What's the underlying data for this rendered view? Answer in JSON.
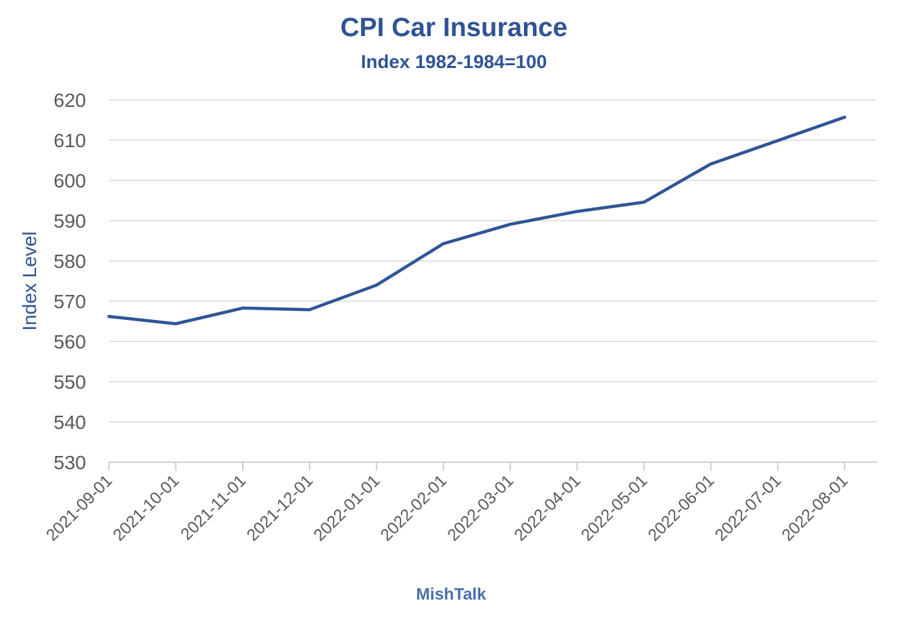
{
  "colors": {
    "title": "#2F5496",
    "line": "#2F5597",
    "grid": "#D9D9D9",
    "axis": "#BFBFBF",
    "tick_text": "#595959",
    "xlabel": "#4A6FAD"
  },
  "chart_data": {
    "type": "line",
    "title": "CPI Car Insurance",
    "subtitle": "Index 1982-1984=100",
    "ylabel": "Index Level",
    "xlabel": "MishTalk",
    "ylim": [
      530,
      620
    ],
    "ytick_step": 10,
    "yticks": [
      "530",
      "540",
      "550",
      "560",
      "570",
      "580",
      "590",
      "600",
      "610",
      "620"
    ],
    "grid": true,
    "legend": "none",
    "categories": [
      "2021-09-01",
      "2021-10-01",
      "2021-11-01",
      "2021-12-01",
      "2022-01-01",
      "2022-02-01",
      "2022-03-01",
      "2022-04-01",
      "2022-05-01",
      "2022-06-01",
      "2022-07-01",
      "2022-08-01"
    ],
    "series": [
      {
        "values": [
          566.2,
          564.4,
          568.3,
          567.9,
          574.0,
          584.3,
          589.1,
          592.3,
          594.6,
          604.1,
          609.9,
          615.7
        ]
      }
    ]
  }
}
